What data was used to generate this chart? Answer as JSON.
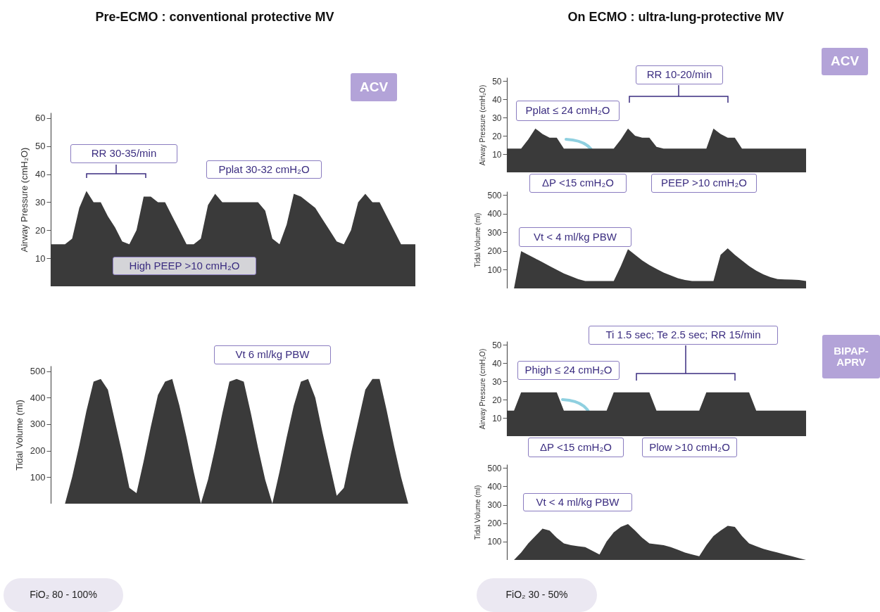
{
  "chart_data": [
    {
      "type": "area",
      "title": "Pre-ECMO : conventional protective MV",
      "ylabel": "Airway Pressure (cmH₂O)",
      "color": "#3a3a3a",
      "ylim": [
        0,
        62
      ],
      "yticks": [
        10,
        20,
        30,
        40,
        50,
        60
      ],
      "grid": false,
      "tick_labels": "y",
      "categories": [
        null,
        null,
        null,
        null,
        null,
        null,
        null,
        null,
        null,
        null,
        null,
        null,
        null,
        null,
        null,
        null,
        null,
        null,
        null,
        null,
        null,
        null,
        null,
        null,
        null,
        null,
        null,
        null,
        null,
        null,
        null,
        null,
        null,
        null,
        null,
        null,
        null,
        null,
        null,
        null,
        null,
        null,
        null,
        null,
        null,
        null,
        null,
        null,
        null,
        null,
        null,
        null
      ],
      "values": [
        15,
        15,
        15,
        17,
        28,
        34,
        30,
        30,
        25,
        21,
        16,
        15,
        20,
        32,
        32,
        30,
        30,
        25,
        20,
        15,
        15,
        17,
        29,
        33,
        30,
        30,
        30,
        30,
        30,
        30,
        27,
        17,
        15,
        22,
        33,
        32,
        30,
        28,
        24,
        20,
        16,
        15,
        20,
        30,
        33,
        30,
        30,
        25,
        20,
        15,
        15,
        15
      ],
      "annotations": [
        "ACV",
        "RR 30-35/min",
        "Pplat 30-32 cmH₂O",
        "High PEEP >10 cmH₂O"
      ]
    },
    {
      "type": "area",
      "ylabel": "Tidal Volume (ml)",
      "color": "#3a3a3a",
      "ylim": [
        0,
        520
      ],
      "yticks": [
        100,
        200,
        300,
        400,
        500
      ],
      "grid": false,
      "tick_labels": "y",
      "categories": [
        null,
        null,
        null,
        null,
        null,
        null,
        null,
        null,
        null,
        null,
        null,
        null,
        null,
        null,
        null,
        null,
        null,
        null,
        null,
        null,
        null,
        null,
        null,
        null,
        null,
        null,
        null,
        null,
        null,
        null,
        null,
        null,
        null,
        null,
        null,
        null,
        null,
        null,
        null,
        null,
        null,
        null,
        null,
        null,
        null,
        null,
        null,
        null,
        null,
        null,
        null,
        null
      ],
      "values": [
        0,
        0,
        0,
        100,
        220,
        350,
        460,
        470,
        430,
        310,
        190,
        60,
        40,
        160,
        290,
        410,
        460,
        470,
        370,
        250,
        120,
        0,
        90,
        210,
        340,
        460,
        470,
        460,
        340,
        210,
        90,
        0,
        120,
        250,
        370,
        460,
        470,
        400,
        270,
        150,
        30,
        60,
        190,
        310,
        430,
        470,
        470,
        350,
        220,
        100,
        0,
        0
      ],
      "annotations": [
        "Vt 6 ml/kg PBW",
        "FiO₂ 80 - 100%"
      ]
    },
    {
      "type": "area",
      "title": "On ECMO : ultra-lung-protective MV",
      "ylabel": "Airway Pressure (cmH₂O)",
      "color": "#3a3a3a",
      "ylim": [
        0,
        52
      ],
      "yticks": [
        10,
        20,
        30,
        40,
        50
      ],
      "grid": false,
      "tick_labels": "y",
      "categories": [
        null,
        null,
        null,
        null,
        null,
        null,
        null,
        null,
        null,
        null,
        null,
        null,
        null,
        null,
        null,
        null,
        null,
        null,
        null,
        null,
        null,
        null,
        null,
        null,
        null,
        null,
        null,
        null,
        null,
        null,
        null,
        null,
        null,
        null,
        null,
        null,
        null,
        null,
        null,
        null,
        null,
        null,
        null
      ],
      "values": [
        13,
        13,
        13,
        18,
        24,
        21,
        19,
        19,
        13,
        13,
        13,
        13,
        13,
        13,
        13,
        13,
        18,
        24,
        20,
        19,
        19,
        14,
        13,
        13,
        13,
        13,
        13,
        13,
        13,
        24,
        21,
        19,
        19,
        13,
        13,
        13,
        13,
        13,
        13,
        13,
        13,
        13,
        13
      ],
      "annotations": [
        "ACV",
        "RR 10-20/min",
        "Pplat ≤ 24 cmH₂O",
        "ΔP <15 cmH₂O",
        "PEEP >10 cmH₂O"
      ]
    },
    {
      "type": "area",
      "ylabel": "Tidal Volume (ml)",
      "color": "#3a3a3a",
      "ylim": [
        0,
        520
      ],
      "yticks": [
        100,
        200,
        300,
        400,
        500
      ],
      "grid": false,
      "tick_labels": "y",
      "categories": [
        null,
        null,
        null,
        null,
        null,
        null,
        null,
        null,
        null,
        null,
        null,
        null,
        null,
        null,
        null,
        null,
        null,
        null,
        null,
        null,
        null,
        null,
        null,
        null,
        null,
        null,
        null,
        null,
        null,
        null,
        null,
        null,
        null,
        null,
        null,
        null,
        null,
        null,
        null,
        null,
        null,
        null,
        null
      ],
      "values": [
        0,
        0,
        200,
        180,
        160,
        140,
        120,
        100,
        80,
        65,
        50,
        40,
        40,
        40,
        40,
        40,
        120,
        210,
        180,
        150,
        125,
        105,
        85,
        70,
        55,
        45,
        40,
        40,
        40,
        40,
        180,
        215,
        180,
        150,
        120,
        95,
        75,
        60,
        50,
        48,
        47,
        45,
        40
      ],
      "annotations": [
        "Vt < 4 ml/kg PBW"
      ]
    },
    {
      "type": "area",
      "ylabel": "Airway Pressure (cmH₂O)",
      "color": "#3a3a3a",
      "ylim": [
        0,
        52
      ],
      "yticks": [
        10,
        20,
        30,
        40,
        50
      ],
      "grid": false,
      "tick_labels": "y",
      "categories": [
        null,
        null,
        null,
        null,
        null,
        null,
        null,
        null,
        null,
        null,
        null,
        null,
        null,
        null,
        null,
        null,
        null,
        null,
        null,
        null,
        null,
        null,
        null,
        null,
        null,
        null,
        null,
        null,
        null,
        null,
        null,
        null,
        null,
        null,
        null,
        null,
        null,
        null,
        null,
        null,
        null,
        null,
        null
      ],
      "values": [
        14,
        14,
        24,
        24,
        24,
        24,
        24,
        24,
        14,
        14,
        14,
        14,
        14,
        14,
        14,
        24,
        24,
        24,
        24,
        24,
        24,
        14,
        14,
        14,
        14,
        14,
        14,
        14,
        24,
        24,
        24,
        24,
        24,
        24,
        24,
        14,
        14,
        14,
        14,
        14,
        14,
        14,
        14
      ],
      "annotations": [
        "BIPAP-APRV",
        "Ti 1.5 sec; Te 2.5 sec; RR 15/min",
        "Phigh ≤ 24 cmH₂O",
        "ΔP <15 cmH₂O",
        "Plow >10 cmH₂O"
      ]
    },
    {
      "type": "area",
      "ylabel": "Tidal Volume (ml)",
      "color": "#3a3a3a",
      "ylim": [
        0,
        520
      ],
      "yticks": [
        100,
        200,
        300,
        400,
        500
      ],
      "grid": false,
      "tick_labels": "y",
      "categories": [
        null,
        null,
        null,
        null,
        null,
        null,
        null,
        null,
        null,
        null,
        null,
        null,
        null,
        null,
        null,
        null,
        null,
        null,
        null,
        null,
        null,
        null,
        null,
        null,
        null,
        null,
        null,
        null,
        null,
        null,
        null,
        null,
        null,
        null,
        null,
        null,
        null,
        null,
        null,
        null,
        null,
        null,
        null
      ],
      "values": [
        0,
        0,
        40,
        90,
        130,
        170,
        160,
        120,
        90,
        80,
        75,
        70,
        50,
        30,
        100,
        150,
        180,
        195,
        160,
        120,
        90,
        85,
        80,
        70,
        55,
        40,
        30,
        20,
        80,
        130,
        160,
        185,
        180,
        130,
        90,
        75,
        60,
        50,
        40,
        30,
        20,
        10,
        0
      ],
      "annotations": [
        "Vt < 4 ml/kg PBW",
        "FiO₂ 30 - 50%"
      ]
    }
  ]
}
